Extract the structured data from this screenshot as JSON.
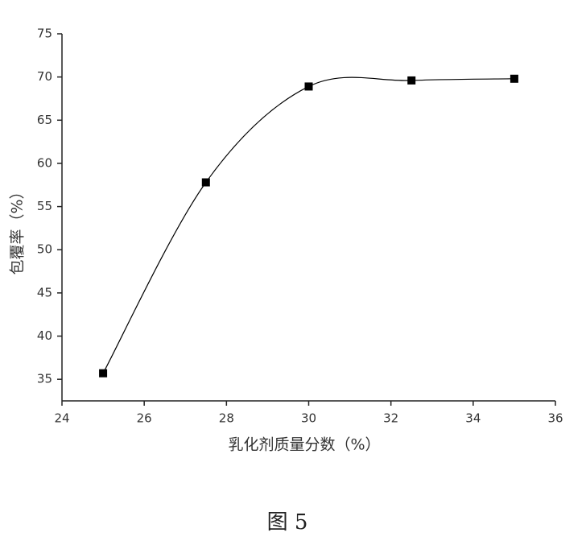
{
  "chart_data": {
    "type": "line",
    "x_label": "乳化剂质量分数（%）",
    "y_label": "包覆率（%）",
    "caption": "图 5",
    "x": [
      25,
      27.5,
      30,
      32.5,
      35
    ],
    "series": [
      {
        "color": "#000000",
        "values": [
          35.7,
          57.8,
          68.9,
          69.6,
          69.8
        ]
      }
    ],
    "xlim": [
      24,
      36
    ],
    "xticks": [
      24,
      26,
      28,
      30,
      32,
      34,
      36
    ],
    "ylim": [
      32.5,
      75
    ],
    "yticks": [
      35,
      40,
      45,
      50,
      55,
      60,
      65,
      70,
      75
    ],
    "smooth": true,
    "markers": "square"
  }
}
